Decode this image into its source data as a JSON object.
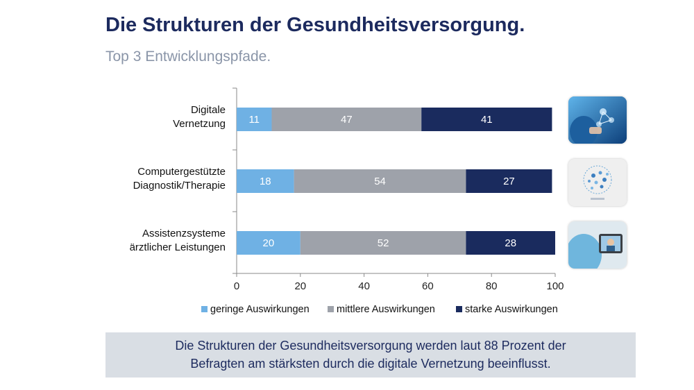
{
  "header": {
    "title": "Die Strukturen der Gesundheitsversorgung.",
    "subtitle": "Top 3 Entwicklungspfade."
  },
  "chart_data": {
    "type": "bar",
    "orientation": "horizontal",
    "stacked": true,
    "categories": [
      [
        "Digitale",
        "Vernetzung"
      ],
      [
        "Computergestützte",
        "Diagnostik/Therapie"
      ],
      [
        "Assistenzsysteme",
        "ärztlicher Leistungen"
      ]
    ],
    "series": [
      {
        "name": "geringe Auswirkungen",
        "color": "#6fb1e4",
        "values": [
          11,
          18,
          20
        ]
      },
      {
        "name": "mittlere Auswirkungen",
        "color": "#9ea2aa",
        "values": [
          47,
          54,
          52
        ]
      },
      {
        "name": "starke Auswirkungen",
        "color": "#1a2b5e",
        "values": [
          41,
          27,
          28
        ]
      }
    ],
    "xlim": [
      0,
      100
    ],
    "xticks": [
      0,
      20,
      40,
      60,
      80,
      100
    ],
    "legend_position": "bottom",
    "grid": false
  },
  "icons": [
    "medical-network-photo-icon",
    "big-data-globe-icon",
    "tablet-assistant-photo-icon"
  ],
  "footer": {
    "lines": [
      "Die Strukturen der Gesundheitsversorgung werden laut 88 Prozent der",
      "Befragten am stärksten durch die digitale Vernetzung beeinflusst."
    ]
  }
}
